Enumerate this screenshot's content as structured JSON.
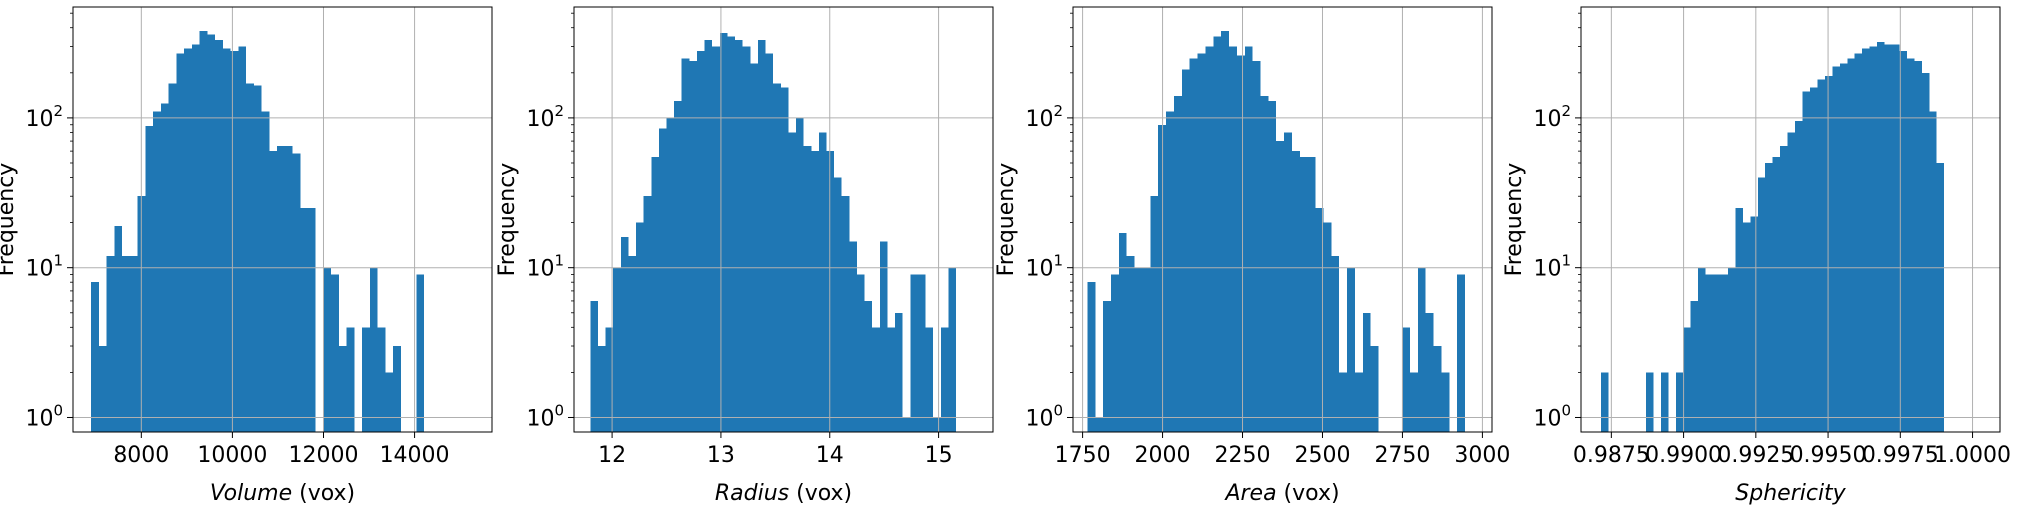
{
  "chart_data": [
    {
      "type": "bar",
      "xlabel": "Volume",
      "xunit": " (vox)",
      "ylabel": "Frequency",
      "yscale": "log",
      "ylim": [
        0.8,
        550
      ],
      "xlim": [
        6500,
        15700
      ],
      "xticks": [
        8000,
        10000,
        12000,
        14000
      ],
      "xtick_labels": [
        "8000",
        "10000",
        "12000",
        "14000"
      ],
      "grid": true,
      "bin_start": 6900,
      "bin_width": 170,
      "values": [
        8,
        3,
        12,
        19,
        12,
        12,
        30,
        88,
        110,
        125,
        170,
        270,
        290,
        310,
        380,
        360,
        330,
        290,
        280,
        300,
        170,
        165,
        110,
        60,
        65,
        65,
        58,
        25,
        25,
        0,
        10,
        9,
        3,
        4,
        0,
        4,
        10,
        4,
        2,
        3,
        0,
        0,
        9
      ]
    },
    {
      "type": "bar",
      "xlabel": "Radius",
      "xunit": " (vox)",
      "ylabel": "Frequency",
      "yscale": "log",
      "ylim": [
        0.8,
        550
      ],
      "xlim": [
        11.65,
        15.5
      ],
      "xticks": [
        12,
        13,
        14,
        15
      ],
      "xtick_labels": [
        "12",
        "13",
        "14",
        "15"
      ],
      "grid": true,
      "bin_start": 11.8,
      "bin_width": 0.07,
      "values": [
        6,
        3,
        4,
        10,
        16,
        12,
        20,
        30,
        55,
        85,
        100,
        130,
        250,
        240,
        280,
        330,
        300,
        370,
        350,
        330,
        300,
        230,
        330,
        270,
        170,
        160,
        80,
        100,
        65,
        60,
        80,
        60,
        40,
        30,
        15,
        9,
        6,
        4,
        15,
        4,
        5,
        1,
        9,
        9,
        4,
        1,
        4,
        10
      ]
    },
    {
      "type": "bar",
      "xlabel": "Area",
      "xunit": " (vox)",
      "ylabel": "Frequency",
      "yscale": "log",
      "ylim": [
        0.8,
        550
      ],
      "xlim": [
        1720,
        3030
      ],
      "xticks": [
        1750,
        2000,
        2250,
        2500,
        2750,
        3000
      ],
      "xtick_labels": [
        "1750",
        "2000",
        "2250",
        "2500",
        "2750",
        "3000"
      ],
      "grid": true,
      "bin_start": 1765,
      "bin_width": 24.6,
      "values": [
        8,
        1,
        6,
        9,
        17,
        12,
        10,
        10,
        30,
        90,
        110,
        140,
        210,
        250,
        270,
        300,
        350,
        380,
        300,
        260,
        300,
        240,
        140,
        130,
        70,
        80,
        60,
        55,
        55,
        25,
        20,
        12,
        2,
        10,
        2,
        5,
        3,
        0,
        0,
        0,
        4,
        2,
        10,
        5,
        3,
        2,
        0,
        9
      ]
    },
    {
      "type": "bar",
      "xlabel": "Sphericity",
      "xunit": "",
      "ylabel": "Frequency",
      "yscale": "log",
      "ylim": [
        0.8,
        550
      ],
      "xlim": [
        0.98645,
        1.00095
      ],
      "xticks": [
        0.9875,
        0.99,
        0.9925,
        0.995,
        0.9975,
        1.0
      ],
      "xtick_labels": [
        "0.9875",
        "0.9900",
        "0.9925",
        "0.9950",
        "0.9975",
        "1.0000"
      ],
      "grid": true,
      "bin_start": 0.98715,
      "bin_width": 0.000258,
      "values": [
        2,
        0,
        0,
        0,
        0,
        0,
        2,
        0,
        2,
        0,
        2,
        4,
        6,
        10,
        9,
        9,
        9,
        10,
        25,
        20,
        22,
        40,
        50,
        55,
        65,
        80,
        95,
        150,
        160,
        180,
        190,
        220,
        230,
        250,
        270,
        290,
        300,
        320,
        310,
        310,
        280,
        250,
        240,
        200,
        110,
        50
      ]
    }
  ]
}
